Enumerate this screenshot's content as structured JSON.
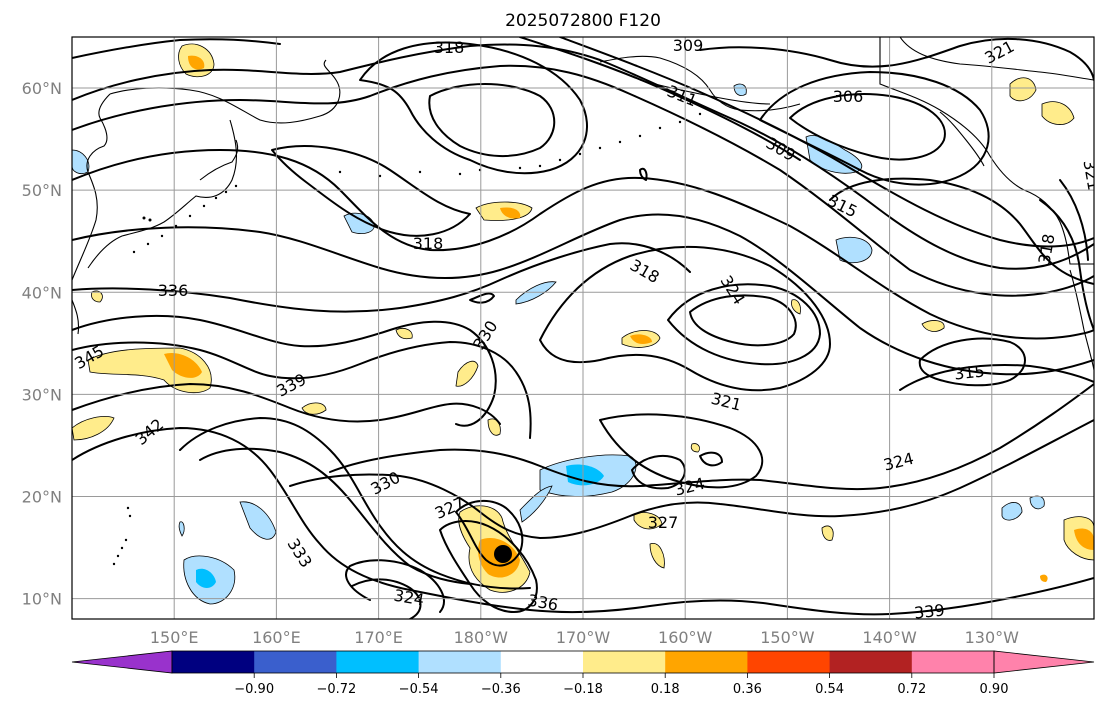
{
  "title": "2025072800 F120",
  "lat_labels": [
    {
      "text": "60°N",
      "lat": 60
    },
    {
      "text": "50°N",
      "lat": 50
    },
    {
      "text": "40°N",
      "lat": 40
    },
    {
      "text": "30°N",
      "lat": 30
    },
    {
      "text": "20°N",
      "lat": 20
    },
    {
      "text": "10°N",
      "lat": 10
    }
  ],
  "lon_labels": [
    {
      "text": "150°E",
      "lon": 150
    },
    {
      "text": "160°E",
      "lon": 160
    },
    {
      "text": "170°E",
      "lon": 170
    },
    {
      "text": "180°W",
      "lon": 180
    },
    {
      "text": "170°W",
      "lon": 190
    },
    {
      "text": "160°W",
      "lon": 200
    },
    {
      "text": "150°W",
      "lon": 210
    },
    {
      "text": "140°W",
      "lon": 220
    },
    {
      "text": "130°W",
      "lon": 230
    }
  ],
  "colorbar": {
    "colors": [
      "#9932cc",
      "#000080",
      "#3a5fcd",
      "#00bfff",
      "#b0e0ff",
      "#ffffff",
      "#ffec8b",
      "#ffa500",
      "#ff4500",
      "#b22222",
      "#ff82ab",
      "#ff82ab"
    ],
    "ticks": [
      "−0.90",
      "−0.72",
      "−0.54",
      "−0.36",
      "−0.18",
      "0.18",
      "0.36",
      "0.54",
      "0.72",
      "0.90"
    ]
  },
  "contour_labels": [
    "318",
    "309",
    "321",
    "311",
    "306",
    "309",
    "315",
    "318",
    "324",
    "318",
    "336",
    "330",
    "345",
    "339",
    "342",
    "321",
    "315",
    "324",
    "330",
    "327",
    "324",
    "327",
    "333",
    "324",
    "336",
    "339",
    "321",
    "318"
  ],
  "storm_marker": "tropical-cyclone-center",
  "colors": {
    "isentrope": "#000000",
    "grid": "#9a9a9a",
    "coastline": "#000000"
  }
}
